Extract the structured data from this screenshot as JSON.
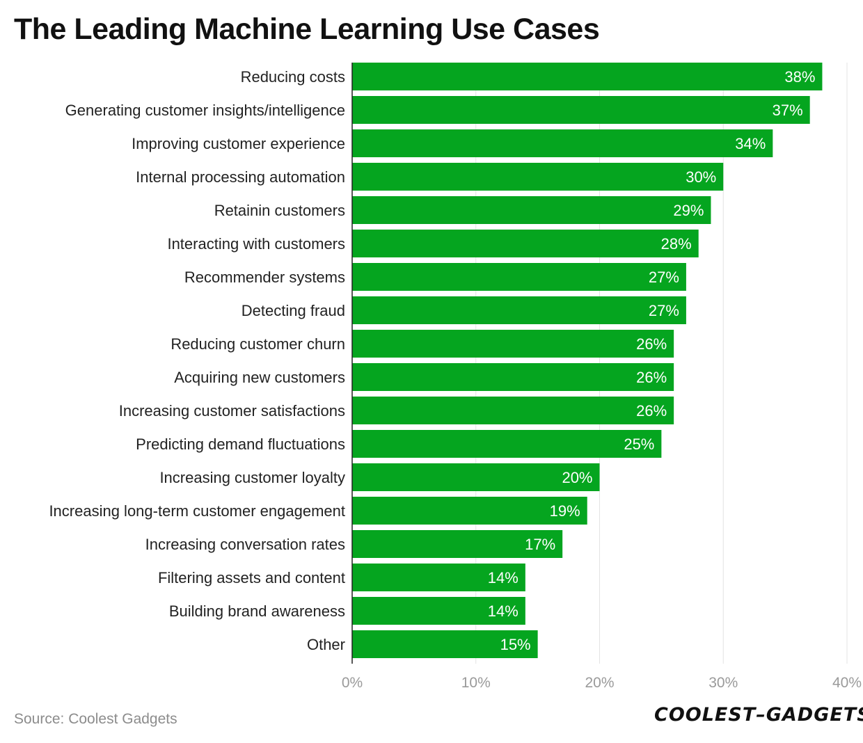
{
  "chart_data": {
    "type": "bar",
    "orientation": "horizontal",
    "title": "The Leading Machine Learning Use Cases",
    "categories": [
      "Reducing costs",
      "Generating customer insights/intelligence",
      "Improving customer experience",
      "Internal processing automation",
      "Retainin customers",
      "Interacting with customers",
      "Recommender systems",
      "Detecting fraud",
      "Reducing customer churn",
      "Acquiring new customers",
      "Increasing customer satisfactions",
      "Predicting demand fluctuations",
      "Increasing customer loyalty",
      "Increasing long-term customer engagement",
      "Increasing conversation rates",
      "Filtering assets and content",
      "Building brand awareness",
      "Other"
    ],
    "values": [
      38,
      37,
      34,
      30,
      29,
      28,
      27,
      27,
      26,
      26,
      26,
      25,
      20,
      19,
      17,
      14,
      14,
      15
    ],
    "value_labels": [
      "38%",
      "37%",
      "34%",
      "30%",
      "29%",
      "28%",
      "27%",
      "27%",
      "26%",
      "26%",
      "26%",
      "25%",
      "20%",
      "19%",
      "17%",
      "14%",
      "14%",
      "15%"
    ],
    "xlim": [
      0,
      40
    ],
    "xticks": [
      0,
      10,
      20,
      30,
      40
    ],
    "xtick_labels": [
      "0%",
      "10%",
      "20%",
      "30%",
      "40%"
    ],
    "xlabel": "",
    "ylabel": "",
    "grid": true,
    "bar_color": "#05a51f"
  },
  "footer": {
    "source": "Source: Coolest Gadgets",
    "logo_text": "COOLEST–GADGETS"
  }
}
